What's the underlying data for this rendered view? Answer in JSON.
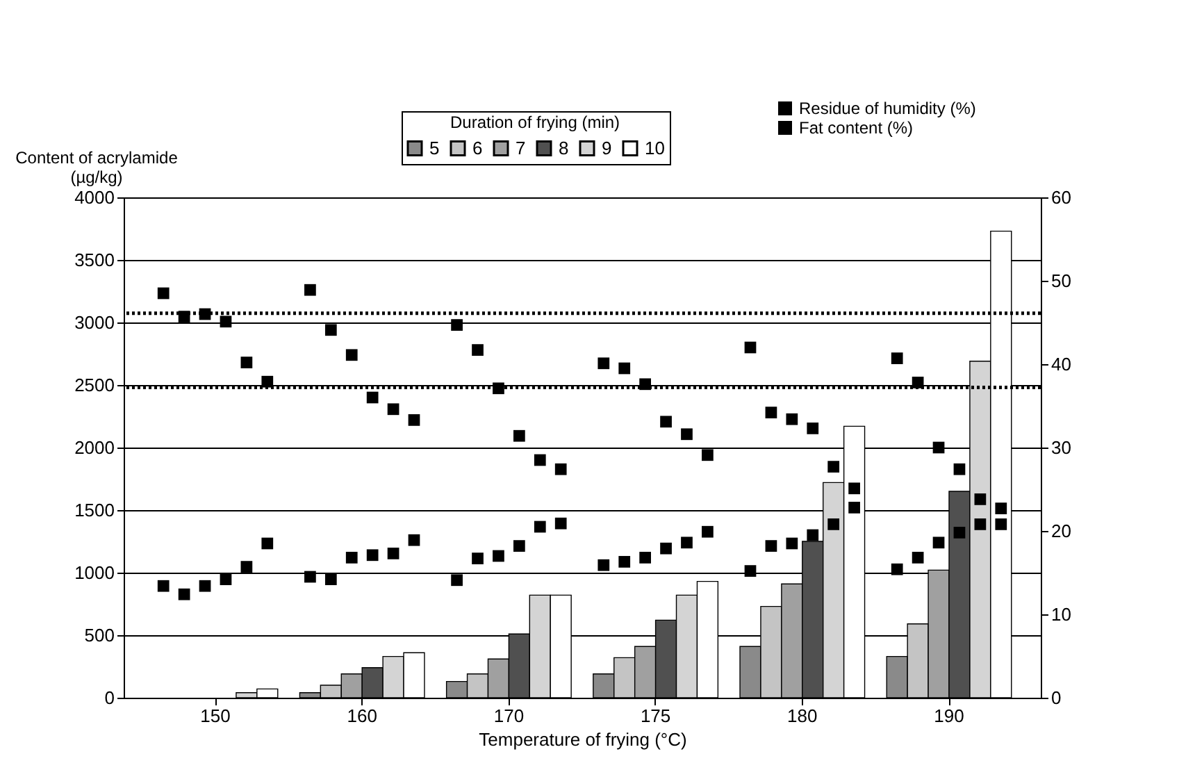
{
  "chart_data": {
    "type": "bar",
    "xlabel": "Temperature of frying (°C)",
    "ylabel": "Content of acrylamide\n(µg/kg)",
    "legend_title": "Duration of frying (min)",
    "categories": [
      "150",
      "160",
      "170",
      "175",
      "180",
      "190"
    ],
    "series": [
      {
        "name": "5",
        "color": "#8a8a8a",
        "values": [
          null,
          40,
          130,
          190,
          410,
          330
        ]
      },
      {
        "name": "6",
        "color": "#c4c4c4",
        "values": [
          null,
          100,
          190,
          320,
          730,
          590
        ]
      },
      {
        "name": "7",
        "color": "#a0a0a0",
        "values": [
          null,
          190,
          310,
          410,
          910,
          1020
        ]
      },
      {
        "name": "8",
        "color": "#505050",
        "values": [
          null,
          240,
          510,
          620,
          1250,
          1650
        ]
      },
      {
        "name": "9",
        "color": "#d4d4d4",
        "values": [
          40,
          330,
          820,
          820,
          1720,
          2690
        ]
      },
      {
        "name": "10",
        "color": "#ffffff",
        "values": [
          70,
          360,
          820,
          930,
          2170,
          3730
        ]
      },
      {
        "name": "Residue of humidity (%)",
        "type": "scatter",
        "axis": "y2",
        "color": "#000000",
        "x": [
          "150",
          "150",
          "150",
          "150",
          "150",
          "150",
          "160",
          "160",
          "160",
          "160",
          "160",
          "160",
          "170",
          "170",
          "170",
          "170",
          "170",
          "170",
          "175",
          "175",
          "175",
          "175",
          "175",
          "175",
          "180",
          "180",
          "180",
          "180",
          "180",
          "180",
          "190",
          "190",
          "190",
          "190",
          "190",
          "190"
        ],
        "values": [
          48.5,
          45.7,
          46.0,
          45.1,
          40.2,
          37.9,
          48.9,
          44.1,
          41.1,
          36.0,
          34.6,
          33.3,
          44.7,
          41.7,
          37.1,
          31.4,
          28.5,
          27.4,
          40.1,
          39.5,
          37.6,
          33.1,
          31.6,
          29.1,
          42.0,
          34.2,
          33.4,
          32.3,
          27.7,
          25.1,
          40.7,
          37.8,
          30.0,
          27.4,
          23.8,
          22.7
        ]
      },
      {
        "name": "Fat content (%)",
        "type": "scatter",
        "axis": "y2",
        "color": "#000000",
        "x": [
          "150",
          "150",
          "150",
          "150",
          "150",
          "150",
          "160",
          "160",
          "160",
          "160",
          "160",
          "160",
          "170",
          "170",
          "170",
          "170",
          "170",
          "170",
          "175",
          "175",
          "175",
          "175",
          "175",
          "175",
          "180",
          "180",
          "180",
          "180",
          "180",
          "180",
          "190",
          "190",
          "190",
          "190",
          "190",
          "190"
        ],
        "values": [
          13.4,
          12.4,
          13.4,
          14.2,
          15.7,
          18.5,
          14.5,
          14.2,
          16.8,
          17.1,
          17.3,
          18.9,
          14.1,
          16.7,
          17.0,
          18.2,
          20.5,
          20.9,
          15.9,
          16.3,
          16.8,
          17.9,
          18.6,
          19.9,
          15.2,
          18.2,
          18.5,
          19.5,
          20.8,
          22.8,
          15.4,
          16.8,
          18.6,
          19.8,
          20.8,
          20.8
        ]
      }
    ],
    "ylim": [
      0,
      4000
    ],
    "yticks": [
      0,
      500,
      1000,
      1500,
      2000,
      2500,
      3000,
      3500,
      4000
    ],
    "y2lim": [
      0,
      60
    ],
    "y2ticks": [
      0,
      10,
      20,
      30,
      40,
      50,
      60
    ],
    "ref_lines": [
      {
        "axis": "y2",
        "value": 46.1,
        "line_style": "dotted",
        "color": "#000000"
      },
      {
        "axis": "y2",
        "value": 37.2,
        "line_style": "dotted",
        "color": "#000000"
      }
    ],
    "grid": "y",
    "legend": "top",
    "marker": "square"
  }
}
